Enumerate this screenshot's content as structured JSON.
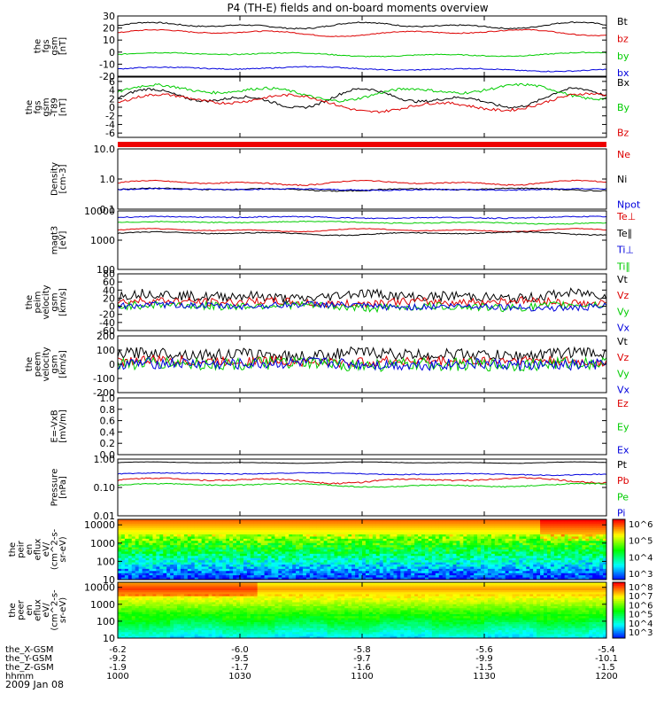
{
  "title": "P4 (TH-E) fields and on-board moments overview",
  "date_label": "2009 Jan 08",
  "ephemeris": {
    "rows": [
      {
        "label": "the_X-GSM",
        "values": [
          "-6.2",
          "-6.0",
          "-5.8",
          "-5.6",
          "-5.4"
        ]
      },
      {
        "label": "the_Y-GSM",
        "values": [
          "-9.2",
          "-9.5",
          "-9.7",
          "-9.9",
          "-10.1"
        ]
      },
      {
        "label": "the_Z-GSM",
        "values": [
          "-1.9",
          "-1.7",
          "-1.6",
          "-1.5",
          "-1.5"
        ]
      },
      {
        "label": "hhmm",
        "values": [
          "1000",
          "1030",
          "1100",
          "1130",
          "1200"
        ]
      }
    ]
  },
  "chart_data": [
    {
      "type": "line",
      "ylabel_lines": [
        "the",
        "fgs",
        "gsm",
        "[nT]"
      ],
      "ylim": [
        -20,
        30
      ],
      "yticks": [
        "30",
        "20",
        "10",
        "0",
        "-10",
        "-20"
      ],
      "series": [
        {
          "name": "Bt",
          "color": "#000000",
          "base": 22,
          "amp": 3,
          "noise": 0.5
        },
        {
          "name": "bz",
          "color": "#dd0000",
          "base": 16,
          "amp": 3,
          "noise": 0.4
        },
        {
          "name": "by",
          "color": "#00cc00",
          "base": -2,
          "amp": 2,
          "noise": 0.4
        },
        {
          "name": "bx",
          "color": "#0000dd",
          "base": -14,
          "amp": 2,
          "noise": 0.4
        }
      ]
    },
    {
      "type": "line",
      "ylabel_lines": [
        "the",
        "fgs",
        "gsm",
        "-T89",
        "[nT]"
      ],
      "ylim": [
        -7,
        7
      ],
      "yticks": [
        "6",
        "4",
        "2",
        "0",
        "-2",
        "-4",
        "-6"
      ],
      "series": [
        {
          "name": "Bx",
          "color": "#000000",
          "base": 2,
          "amp": 2.5,
          "noise": 0.3
        },
        {
          "name": "By",
          "color": "#00cc00",
          "base": 3.5,
          "amp": 2,
          "noise": 0.3
        },
        {
          "name": "Bz",
          "color": "#dd0000",
          "base": 1,
          "amp": 2.5,
          "noise": 0.3
        }
      ]
    },
    {
      "type": "line",
      "ylabel_lines": [
        "Density",
        "[cm-3]"
      ],
      "ylim": [
        0.1,
        10
      ],
      "yscale": "log",
      "yticks": [
        "10.0",
        "1.0",
        "0.1"
      ],
      "series": [
        {
          "name": "Ne",
          "color": "#dd0000",
          "base": 0.75,
          "amp": 0.15,
          "noise": 0.03
        },
        {
          "name": "Ni",
          "color": "#000000",
          "base": 0.45,
          "amp": 0.05,
          "noise": 0.02
        },
        {
          "name": "Npot",
          "color": "#0000dd",
          "base": 0.45,
          "amp": 0.03,
          "noise": 0.02
        }
      ]
    },
    {
      "type": "line",
      "ylabel_lines": [
        "magt3",
        "[eV]"
      ],
      "ylim": [
        100,
        10000
      ],
      "yscale": "log",
      "yticks": [
        "10000",
        "1000",
        "100"
      ],
      "series": [
        {
          "name": "Te⊥",
          "color": "#dd0000",
          "base": 2200,
          "amp": 300,
          "noise": 60
        },
        {
          "name": "Te∥",
          "color": "#000000",
          "base": 1700,
          "amp": 250,
          "noise": 60
        },
        {
          "name": "Ti⊥",
          "color": "#0000dd",
          "base": 6000,
          "amp": 500,
          "noise": 250
        },
        {
          "name": "Ti∥",
          "color": "#00cc00",
          "base": 4000,
          "amp": 400,
          "noise": 150
        }
      ]
    },
    {
      "type": "line",
      "ylabel_lines": [
        "the",
        "peim",
        "velocity",
        "gsm",
        "[km/s]"
      ],
      "ylim": [
        -60,
        80
      ],
      "yticks": [
        "80",
        "60",
        "40",
        "20",
        "0",
        "-20",
        "-40",
        "-60"
      ],
      "series": [
        {
          "name": "Vt",
          "color": "#000000",
          "base": 25,
          "amp": 8,
          "noise": 12
        },
        {
          "name": "Vz",
          "color": "#dd0000",
          "base": 10,
          "amp": 5,
          "noise": 10
        },
        {
          "name": "Vy",
          "color": "#00cc00",
          "base": 0,
          "amp": 5,
          "noise": 10
        },
        {
          "name": "Vx",
          "color": "#0000dd",
          "base": 0,
          "amp": 5,
          "noise": 8
        }
      ]
    },
    {
      "type": "line",
      "ylabel_lines": [
        "the",
        "peem",
        "velocity",
        "gsm",
        "[km/s]"
      ],
      "ylim": [
        -200,
        200
      ],
      "yticks": [
        "200",
        "100",
        "0",
        "-100",
        "-200"
      ],
      "series": [
        {
          "name": "Vt",
          "color": "#000000",
          "base": 70,
          "amp": 15,
          "noise": 40
        },
        {
          "name": "Vz",
          "color": "#dd0000",
          "base": 20,
          "amp": 10,
          "noise": 35
        },
        {
          "name": "Vy",
          "color": "#00cc00",
          "base": 0,
          "amp": 10,
          "noise": 45
        },
        {
          "name": "Vx",
          "color": "#0000dd",
          "base": 0,
          "amp": 10,
          "noise": 40
        }
      ]
    },
    {
      "type": "line",
      "ylabel_lines": [
        "E=-VxB",
        "[mV/m]"
      ],
      "ylim": [
        0,
        1
      ],
      "yticks": [
        "1.0",
        "0.8",
        "0.6",
        "0.4",
        "0.2",
        "0.0"
      ],
      "series": [
        {
          "name": "Ez",
          "color": "#dd0000",
          "values": []
        },
        {
          "name": "Ey",
          "color": "#00cc00",
          "values": []
        },
        {
          "name": "Ex",
          "color": "#0000dd",
          "values": []
        }
      ]
    },
    {
      "type": "line",
      "ylabel_lines": [
        "Pressure",
        "[nPa]"
      ],
      "ylim": [
        0.01,
        1
      ],
      "yscale": "log",
      "yticks": [
        "1.00",
        "0.10",
        "0.01"
      ],
      "series": [
        {
          "name": "Pt",
          "color": "#000000",
          "base": 0.75,
          "amp": 0.05,
          "noise": 0.01
        },
        {
          "name": "Pb",
          "color": "#dd0000",
          "base": 0.18,
          "amp": 0.04,
          "noise": 0.01
        },
        {
          "name": "Pe",
          "color": "#00cc00",
          "base": 0.12,
          "amp": 0.02,
          "noise": 0.005
        },
        {
          "name": "Pi",
          "color": "#0000dd",
          "base": 0.3,
          "amp": 0.03,
          "noise": 0.01
        }
      ]
    },
    {
      "type": "heatmap",
      "ylabel_lines": [
        "the",
        "peir",
        "en",
        "eflux",
        "eV/",
        "(cm^2-s-",
        "sr-eV)"
      ],
      "ylim": [
        10,
        20000
      ],
      "yscale": "log",
      "yticks": [
        "10000",
        "1000",
        "100",
        "10"
      ],
      "colorbar_ticks": [
        "10^6",
        "10^5",
        "10^4",
        "10^3"
      ]
    },
    {
      "type": "heatmap",
      "ylabel_lines": [
        "the",
        "peer",
        "en",
        "eflux",
        "eV/",
        "(cm^2-s-",
        "sr-eV)"
      ],
      "ylim": [
        10,
        20000
      ],
      "yscale": "log",
      "yticks": [
        "10000",
        "1000",
        "100",
        "10"
      ],
      "colorbar_ticks": [
        "10^8",
        "10^7",
        "10^6",
        "10^5",
        "10^4",
        "10^3"
      ]
    }
  ]
}
